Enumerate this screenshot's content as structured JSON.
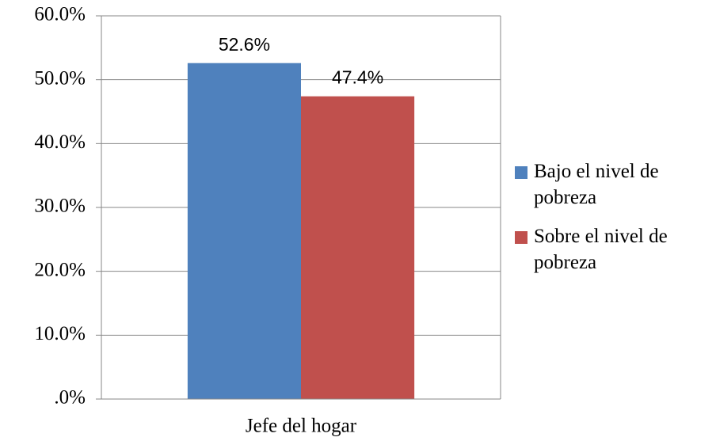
{
  "chart_data": {
    "type": "bar",
    "categories": [
      "Jefe del hogar"
    ],
    "series": [
      {
        "name": "Bajo el nivel de pobreza",
        "color": "#4f81bd",
        "values": [
          52.6
        ],
        "value_labels": [
          "52.6%"
        ]
      },
      {
        "name": "Sobre el nivel de pobreza",
        "color": "#c0504d",
        "values": [
          47.4
        ],
        "value_labels": [
          "47.4%"
        ]
      }
    ],
    "ylim": [
      0,
      60
    ],
    "yticks": [
      {
        "value": 0,
        "label": ".0%"
      },
      {
        "value": 10,
        "label": "10.0%"
      },
      {
        "value": 20,
        "label": "20.0%"
      },
      {
        "value": 30,
        "label": "30.0%"
      },
      {
        "value": 40,
        "label": "40.0%"
      },
      {
        "value": 50,
        "label": "50.0%"
      },
      {
        "value": 60,
        "label": "60.0%"
      }
    ],
    "grid": true,
    "legend": "right"
  }
}
